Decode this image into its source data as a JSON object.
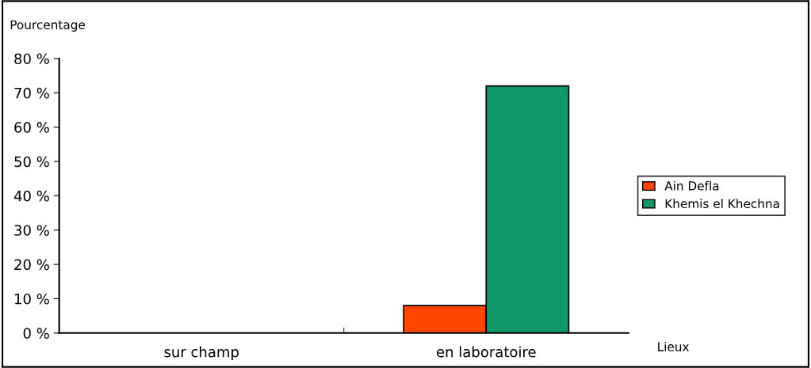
{
  "chart_data": {
    "type": "bar",
    "ylabel": "Pourcentage",
    "xlabel": "Lieux",
    "categories": [
      "sur champ",
      "en laboratoire"
    ],
    "series": [
      {
        "name": "Ain Defla",
        "color": "#ff4500",
        "values": [
          null,
          8
        ]
      },
      {
        "name": "Khemis el Khechna",
        "color": "#109868",
        "values": [
          null,
          72
        ]
      }
    ],
    "ylim": [
      0,
      80
    ],
    "yticks": [
      {
        "value": 0,
        "label": "0 %"
      },
      {
        "value": 10,
        "label": "10 %"
      },
      {
        "value": 20,
        "label": "20 %"
      },
      {
        "value": 30,
        "label": "30 %"
      },
      {
        "value": 40,
        "label": "40 %"
      },
      {
        "value": 50,
        "label": "50 %"
      },
      {
        "value": 60,
        "label": "60 %"
      },
      {
        "value": 70,
        "label": "70 %"
      },
      {
        "value": 80,
        "label": "80 %"
      }
    ],
    "grid": false,
    "legend": "right"
  }
}
